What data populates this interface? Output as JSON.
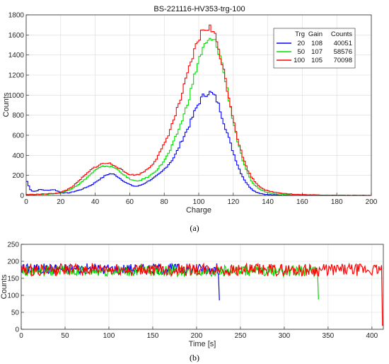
{
  "chart_data": [
    {
      "id": "a",
      "type": "line",
      "title": "BS-221116-HV353-trg-100",
      "xlabel": "Charge",
      "ylabel": "Counts",
      "xlim": [
        0,
        200
      ],
      "ylim": [
        0,
        1800
      ],
      "xticks": [
        0,
        20,
        40,
        60,
        80,
        100,
        120,
        140,
        160,
        180,
        200
      ],
      "yticks": [
        0,
        200,
        400,
        600,
        800,
        1000,
        1200,
        1400,
        1600,
        1800
      ],
      "grid": true,
      "legend": {
        "placement": "top-right",
        "headers": [
          "Trg",
          "Gain",
          "Counts"
        ],
        "rows": [
          {
            "trg": "20",
            "gain": "108",
            "counts": "40051",
            "color": "#0000ff"
          },
          {
            "trg": "50",
            "gain": "107",
            "counts": "58576",
            "color": "#00dd00"
          },
          {
            "trg": "100",
            "gain": "105",
            "counts": "70098",
            "color": "#ff0000"
          }
        ]
      },
      "series": [
        {
          "color": "#0000ff",
          "x": [
            0,
            1,
            2,
            3,
            4,
            6,
            8,
            10,
            12,
            14,
            16,
            18,
            20,
            22,
            24,
            26,
            28,
            30,
            32,
            34,
            36,
            38,
            40,
            42,
            44,
            46,
            48,
            50,
            52,
            54,
            56,
            58,
            60,
            62,
            64,
            66,
            68,
            70,
            72,
            74,
            76,
            78,
            80,
            82,
            84,
            86,
            88,
            90,
            92,
            94,
            96,
            98,
            100,
            102,
            104,
            106,
            108,
            110,
            112,
            114,
            116,
            118,
            120,
            122,
            124,
            126,
            128,
            130,
            132,
            134,
            136,
            138,
            140,
            145,
            150,
            160,
            170,
            180,
            190,
            200
          ],
          "y": [
            160,
            120,
            70,
            50,
            40,
            45,
            60,
            55,
            50,
            55,
            60,
            45,
            30,
            25,
            25,
            30,
            40,
            50,
            60,
            75,
            90,
            105,
            130,
            155,
            175,
            200,
            215,
            215,
            200,
            175,
            150,
            125,
            110,
            95,
            90,
            100,
            115,
            135,
            155,
            175,
            200,
            225,
            260,
            300,
            340,
            390,
            460,
            540,
            610,
            680,
            760,
            850,
            920,
            980,
            1010,
            1030,
            1010,
            970,
            880,
            760,
            650,
            540,
            430,
            330,
            240,
            170,
            115,
            75,
            45,
            30,
            20,
            12,
            8,
            4,
            2,
            1,
            0,
            0,
            0,
            0
          ]
        },
        {
          "color": "#00dd00",
          "x": [
            0,
            2,
            4,
            6,
            8,
            10,
            12,
            14,
            16,
            18,
            20,
            22,
            24,
            26,
            28,
            30,
            32,
            34,
            36,
            38,
            40,
            42,
            44,
            46,
            48,
            50,
            52,
            54,
            56,
            58,
            60,
            62,
            64,
            66,
            68,
            70,
            72,
            74,
            76,
            78,
            80,
            82,
            84,
            86,
            88,
            90,
            92,
            94,
            96,
            98,
            100,
            102,
            104,
            106,
            108,
            110,
            112,
            114,
            116,
            118,
            120,
            122,
            124,
            126,
            128,
            130,
            132,
            134,
            136,
            138,
            140,
            145,
            150,
            155,
            160,
            170,
            180,
            190,
            200
          ],
          "y": [
            10,
            8,
            8,
            10,
            12,
            12,
            12,
            15,
            18,
            20,
            25,
            35,
            50,
            65,
            85,
            105,
            130,
            160,
            190,
            220,
            250,
            270,
            285,
            295,
            290,
            285,
            270,
            245,
            215,
            185,
            165,
            150,
            140,
            150,
            165,
            180,
            200,
            230,
            260,
            300,
            350,
            400,
            470,
            550,
            640,
            730,
            830,
            950,
            1080,
            1220,
            1350,
            1440,
            1500,
            1540,
            1550,
            1510,
            1420,
            1270,
            1100,
            920,
            740,
            580,
            440,
            320,
            230,
            160,
            110,
            80,
            55,
            40,
            30,
            18,
            10,
            6,
            4,
            2,
            1,
            0,
            0
          ]
        },
        {
          "color": "#ff0000",
          "x": [
            0,
            2,
            4,
            6,
            8,
            10,
            12,
            14,
            16,
            18,
            20,
            22,
            24,
            26,
            28,
            30,
            32,
            34,
            36,
            38,
            40,
            42,
            44,
            46,
            48,
            50,
            52,
            54,
            56,
            58,
            60,
            62,
            64,
            66,
            68,
            70,
            72,
            74,
            76,
            78,
            80,
            82,
            84,
            86,
            88,
            90,
            92,
            94,
            96,
            98,
            100,
            102,
            104,
            106,
            108,
            110,
            112,
            114,
            116,
            118,
            120,
            122,
            124,
            126,
            128,
            130,
            132,
            134,
            136,
            138,
            140,
            145,
            150,
            155,
            160,
            170,
            180,
            190,
            200
          ],
          "y": [
            10,
            10,
            10,
            12,
            12,
            15,
            15,
            18,
            20,
            25,
            30,
            45,
            60,
            80,
            105,
            135,
            170,
            200,
            230,
            260,
            285,
            300,
            315,
            320,
            320,
            310,
            295,
            270,
            245,
            225,
            210,
            205,
            205,
            215,
            235,
            260,
            290,
            330,
            380,
            440,
            510,
            590,
            680,
            780,
            880,
            990,
            1110,
            1230,
            1350,
            1460,
            1560,
            1630,
            1670,
            1680,
            1640,
            1560,
            1440,
            1280,
            1110,
            940,
            770,
            610,
            470,
            360,
            270,
            200,
            150,
            110,
            80,
            60,
            45,
            30,
            20,
            12,
            8,
            4,
            2,
            1,
            0
          ]
        }
      ]
    },
    {
      "id": "b",
      "type": "line",
      "xlabel": "Time [s]",
      "ylabel": "Counts",
      "xlim": [
        0,
        413
      ],
      "ylim": [
        0,
        250
      ],
      "xticks": [
        0,
        50,
        100,
        150,
        200,
        250,
        300,
        350,
        400
      ],
      "yticks": [
        0,
        50,
        100,
        150,
        200,
        250
      ],
      "grid": true,
      "series": [
        {
          "color": "#0000ff",
          "x_end": 226,
          "mean": 178,
          "spread": 16,
          "drop_value": 85
        },
        {
          "color": "#00dd00",
          "x_end": 339,
          "mean": 172,
          "spread": 16,
          "drop_value": 88
        },
        {
          "color": "#ff0000",
          "x_end": 412,
          "mean": 175,
          "spread": 18,
          "drop_value": 10
        }
      ]
    }
  ],
  "captions": {
    "a": "(a)",
    "b": "(b)"
  }
}
